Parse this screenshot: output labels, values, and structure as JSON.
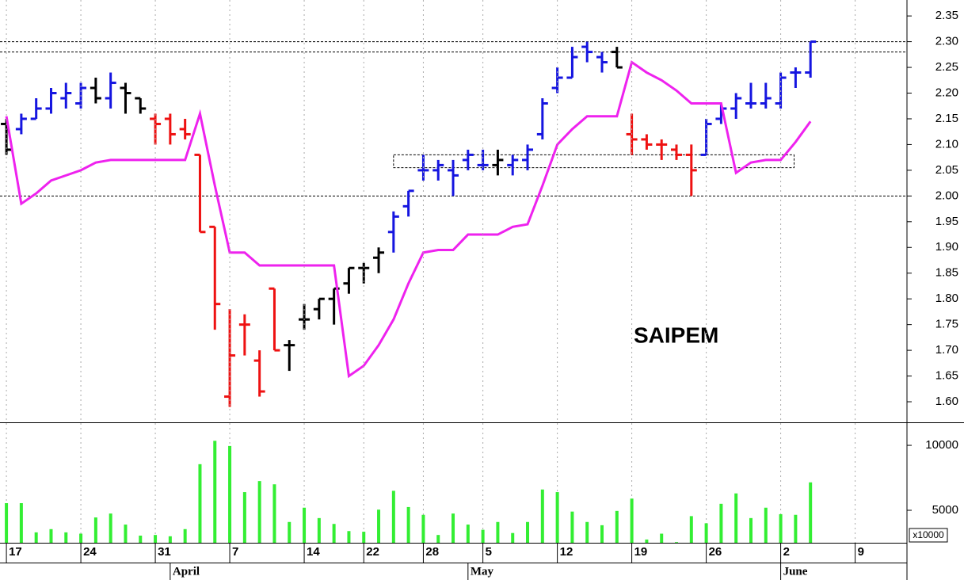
{
  "chart_data": [
    {
      "type": "ohlc",
      "title": "SAIPEM",
      "ylim": [
        1.56,
        2.381
      ],
      "yticks": [
        2.35,
        {
          "value": 2.3,
          "label": "2.30"
        },
        2.25,
        {
          "value": 2.2,
          "label": "2.20"
        },
        2.15,
        {
          "value": 2.1,
          "label": "2.10"
        },
        2.05,
        {
          "value": 2.0,
          "label": "2.00"
        },
        1.95,
        {
          "value": 1.9,
          "label": "1.90"
        },
        1.85,
        {
          "value": 1.8,
          "label": "1.80"
        },
        1.75,
        {
          "value": 1.7,
          "label": "1.70"
        },
        1.65,
        {
          "value": 1.6,
          "label": "1.60"
        }
      ],
      "xlim": [
        -0.43,
        60.48
      ],
      "open": [
        2.14,
        2.13,
        2.15,
        2.17,
        2.19,
        2.18,
        2.21,
        2.19,
        2.21,
        2.19,
        2.15,
        2.15,
        2.13,
        2.08,
        1.94,
        1.61,
        1.75,
        1.68,
        1.82,
        1.71,
        1.76,
        1.78,
        1.8,
        1.83,
        1.86,
        1.88,
        1.93,
        1.98,
        2.05,
        2.05,
        2.05,
        2.07,
        2.06,
        2.06,
        2.06,
        2.07,
        2.12,
        2.21,
        2.23,
        2.29,
        2.27,
        2.28,
        2.12,
        2.11,
        2.1,
        2.09,
        2.08,
        2.08,
        2.15,
        2.17,
        2.18,
        2.18,
        2.18,
        2.24,
        2.24
      ],
      "high": [
        2.15,
        2.16,
        2.19,
        2.21,
        2.22,
        2.22,
        2.23,
        2.24,
        2.22,
        2.19,
        2.16,
        2.16,
        2.15,
        2.08,
        1.94,
        1.78,
        1.77,
        1.7,
        1.82,
        1.72,
        1.79,
        1.8,
        1.82,
        1.86,
        1.87,
        1.9,
        1.97,
        2.01,
        2.08,
        2.07,
        2.07,
        2.09,
        2.09,
        2.09,
        2.08,
        2.1,
        2.19,
        2.25,
        2.29,
        2.3,
        2.28,
        2.29,
        2.16,
        2.12,
        2.11,
        2.1,
        2.1,
        2.15,
        2.18,
        2.2,
        2.22,
        2.22,
        2.24,
        2.25,
        2.3
      ],
      "low": [
        2.08,
        2.12,
        2.15,
        2.16,
        2.17,
        2.17,
        2.18,
        2.17,
        2.16,
        2.16,
        2.1,
        2.1,
        2.11,
        1.93,
        1.74,
        1.59,
        1.69,
        1.61,
        1.7,
        1.66,
        1.74,
        1.76,
        1.75,
        1.81,
        1.83,
        1.85,
        1.89,
        1.96,
        2.03,
        2.03,
        2.0,
        2.05,
        2.05,
        2.04,
        2.04,
        2.05,
        2.11,
        2.2,
        2.23,
        2.26,
        2.24,
        2.25,
        2.08,
        2.09,
        2.07,
        2.07,
        2.0,
        2.08,
        2.14,
        2.15,
        2.17,
        2.17,
        2.17,
        2.21,
        2.23
      ],
      "close": [
        2.09,
        2.15,
        2.17,
        2.2,
        2.2,
        2.21,
        2.19,
        2.22,
        2.2,
        2.17,
        2.14,
        2.12,
        2.12,
        1.93,
        1.79,
        1.69,
        1.75,
        1.62,
        1.7,
        1.71,
        1.76,
        1.8,
        1.82,
        1.86,
        1.86,
        1.89,
        1.96,
        2.01,
        2.05,
        2.06,
        2.04,
        2.08,
        2.06,
        2.07,
        2.07,
        2.09,
        2.18,
        2.23,
        2.27,
        2.28,
        2.26,
        2.25,
        2.11,
        2.1,
        2.1,
        2.08,
        2.05,
        2.14,
        2.17,
        2.19,
        2.18,
        2.19,
        2.23,
        2.24,
        2.3
      ],
      "colors": [
        "#000000",
        "#1515e0",
        "#1515e0",
        "#1515e0",
        "#1515e0",
        "#1515e0",
        "#000000",
        "#1515e0",
        "#000000",
        "#000000",
        "#ee1111",
        "#ee1111",
        "#ee1111",
        "#ee1111",
        "#ee1111",
        "#ee1111",
        "#ee1111",
        "#ee1111",
        "#ee1111",
        "#000000",
        "#000000",
        "#000000",
        "#000000",
        "#000000",
        "#000000",
        "#000000",
        "#1515e0",
        "#1515e0",
        "#1515e0",
        "#1515e0",
        "#1515e0",
        "#1515e0",
        "#1515e0",
        "#000000",
        "#1515e0",
        "#1515e0",
        "#1515e0",
        "#1515e0",
        "#1515e0",
        "#1515e0",
        "#1515e0",
        "#000000",
        "#ee1111",
        "#ee1111",
        "#ee1111",
        "#ee1111",
        "#ee1111",
        "#1515e0",
        "#1515e0",
        "#1515e0",
        "#1515e0",
        "#1515e0",
        "#1515e0",
        "#1515e0",
        "#1515e0"
      ],
      "line": {
        "color": "#ee22ee",
        "values": [
          2.155,
          1.985,
          2.005,
          2.03,
          2.04,
          2.05,
          2.065,
          2.07,
          2.07,
          2.07,
          2.07,
          2.07,
          2.07,
          2.16,
          2.02,
          1.89,
          1.89,
          1.865,
          1.865,
          1.865,
          1.865,
          1.865,
          1.865,
          1.65,
          1.67,
          1.71,
          1.76,
          1.83,
          1.89,
          1.895,
          1.895,
          1.925,
          1.925,
          1.925,
          1.94,
          1.945,
          2.02,
          2.1,
          2.13,
          2.155,
          2.155,
          2.155,
          2.26,
          2.24,
          2.225,
          2.205,
          2.18,
          2.18,
          2.18,
          2.045,
          2.065,
          2.07,
          2.07,
          2.105,
          2.145
        ]
      },
      "hlines": [
        2.3,
        2.28,
        2.0
      ],
      "box": {
        "x": [
          26,
          52.9
        ],
        "y": [
          2.055,
          2.08
        ]
      }
    },
    {
      "type": "bar",
      "color": "#33ee33",
      "ylim": [
        2500,
        11650
      ],
      "yticks": [
        5000,
        10000
      ],
      "unit": "x10000",
      "xlim": [
        -0.43,
        60.48
      ],
      "values": [
        5550,
        5550,
        3300,
        3550,
        3300,
        3200,
        4450,
        4750,
        3900,
        3050,
        3100,
        3000,
        3550,
        8550,
        10350,
        9950,
        6400,
        7250,
        7000,
        4100,
        5200,
        4400,
        3950,
        3400,
        3350,
        5050,
        6500,
        5250,
        4650,
        3100,
        4750,
        3900,
        3500,
        4100,
        3250,
        4100,
        6600,
        6400,
        4900,
        4100,
        3850,
        4950,
        5900,
        2750,
        3200,
        2550,
        4550,
        4000,
        5500,
        6300,
        4400,
        5200,
        4700,
        4650,
        7150
      ],
      "xticks": [
        {
          "value": 0,
          "label": "17"
        },
        {
          "value": 5,
          "label": "24"
        },
        {
          "value": 10,
          "label": "31"
        },
        {
          "value": 15,
          "label": "7"
        },
        {
          "value": 20,
          "label": "14"
        },
        {
          "value": 24,
          "label": "22"
        },
        {
          "value": 28,
          "label": "28"
        },
        {
          "value": 32,
          "label": "5"
        },
        {
          "value": 37,
          "label": "12"
        },
        {
          "value": 42,
          "label": "19"
        },
        {
          "value": 47,
          "label": "26"
        },
        {
          "value": 52,
          "label": "2"
        },
        {
          "value": 57,
          "label": "9"
        }
      ],
      "month_ticks": [
        {
          "value": 11,
          "label": "April"
        },
        {
          "value": 31,
          "label": "May"
        },
        {
          "value": 52,
          "label": "June"
        }
      ]
    }
  ]
}
